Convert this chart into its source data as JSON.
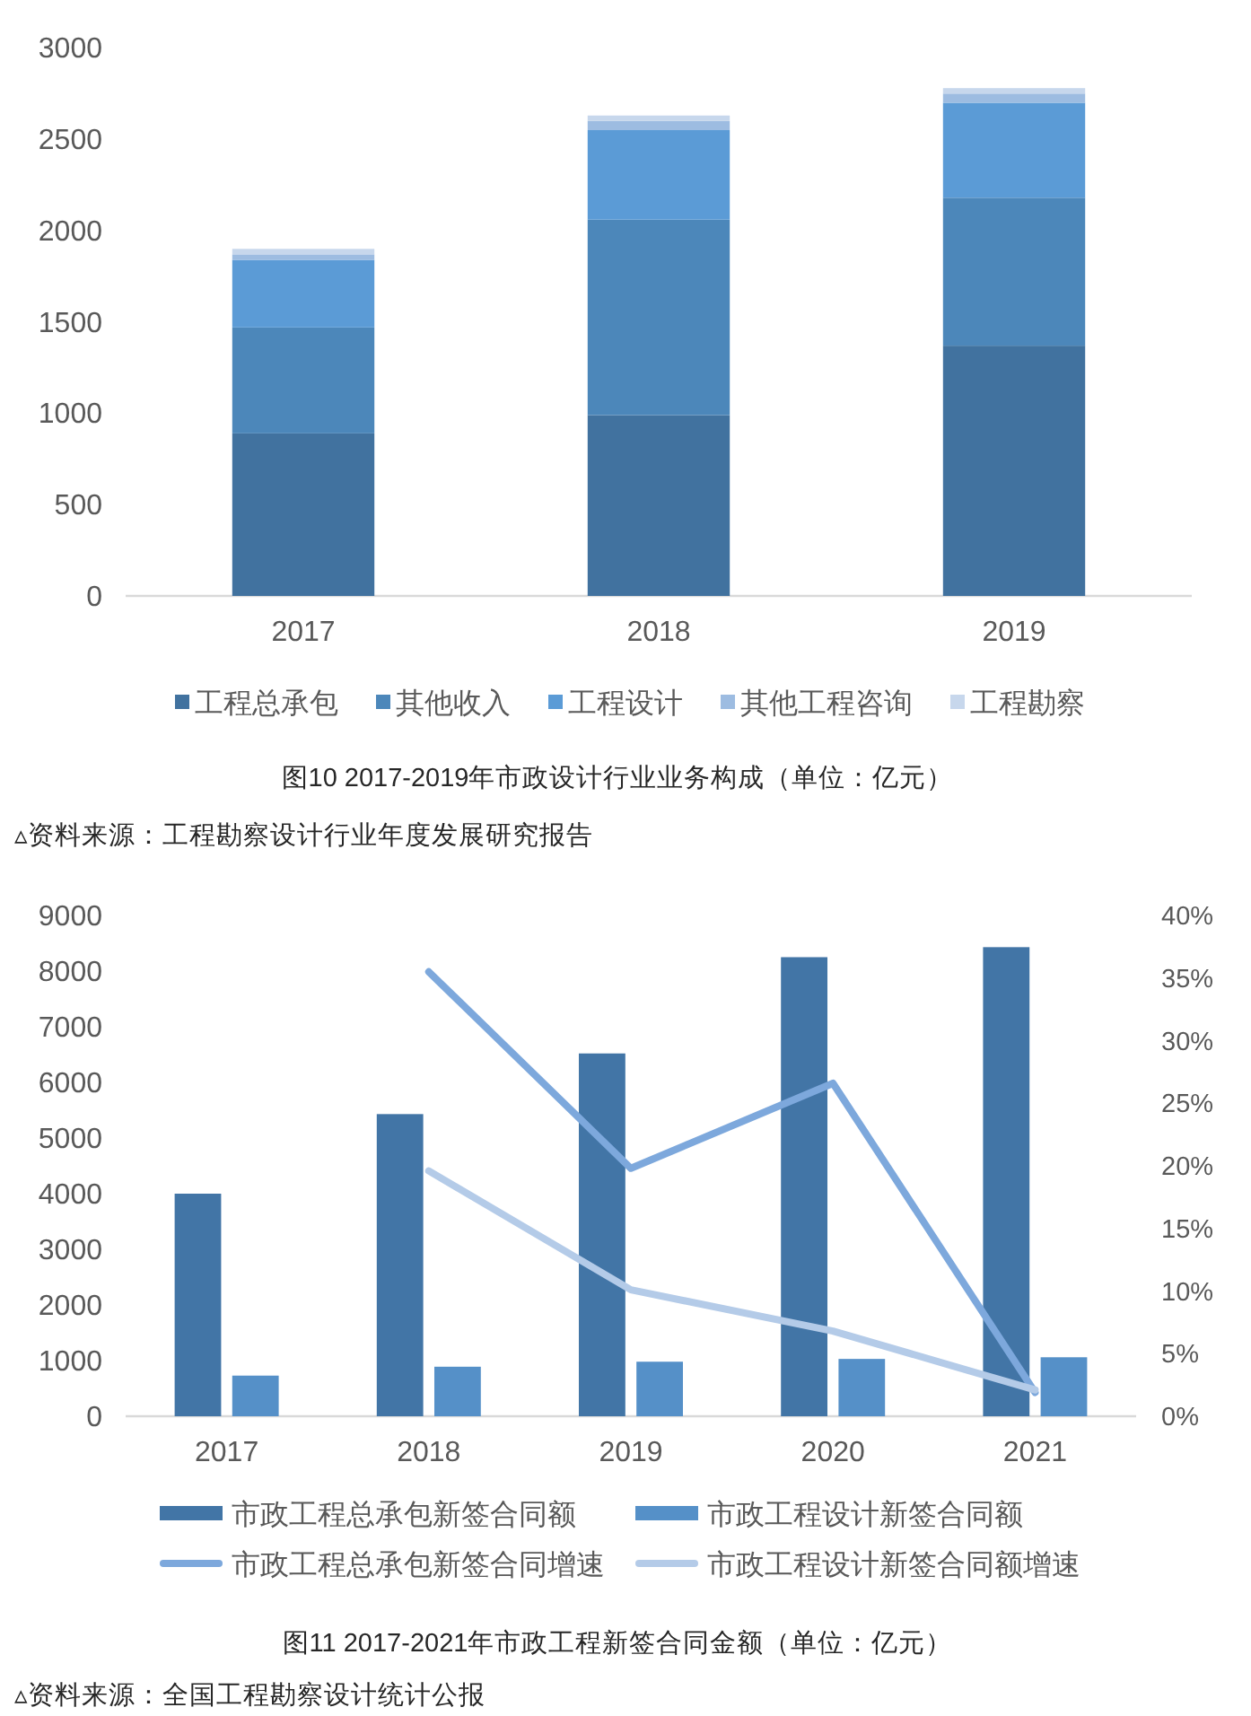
{
  "chart_data": [
    {
      "type": "bar",
      "stacked": true,
      "title": "图10 2017-2019年市政设计行业业务构成（单位：亿元）",
      "annotations": [
        "▵资料来源：工程勘察设计行业年度发展研究报告"
      ],
      "categories": [
        "2017",
        "2018",
        "2019"
      ],
      "series": [
        {
          "name": "工程总承包",
          "color": "#41729f",
          "values": [
            890,
            990,
            1370
          ]
        },
        {
          "name": "其他收入",
          "color": "#4c87ba",
          "values": [
            580,
            1070,
            810
          ]
        },
        {
          "name": "工程设计",
          "color": "#5b9bd6",
          "values": [
            370,
            490,
            520
          ]
        },
        {
          "name": "其他工程咨询",
          "color": "#9dbce1",
          "values": [
            30,
            50,
            50
          ]
        },
        {
          "name": "工程勘察",
          "color": "#c7d7ec",
          "values": [
            30,
            30,
            30
          ]
        }
      ],
      "ylim": [
        0,
        3000
      ],
      "yticks": [
        0,
        500,
        1000,
        1500,
        2000,
        2500,
        3000
      ],
      "legend": "bottom"
    },
    {
      "type": "bar",
      "title": "图11 2017-2021年市政工程新签合同金额（单位：亿元）",
      "annotations": [
        "▵资料来源：全国工程勘察设计统计公报"
      ],
      "categories": [
        "2017",
        "2018",
        "2019",
        "2020",
        "2021"
      ],
      "series": [
        {
          "name": "市政工程总承包新签合同额",
          "color": "#4275a6",
          "values": [
            4000,
            5430,
            6520,
            8250,
            8430
          ]
        },
        {
          "name": "市政工程设计新签合同额",
          "color": "#5590c8",
          "values": [
            730,
            890,
            980,
            1030,
            1060
          ]
        },
        {
          "name": "市政工程总承包新签合同增速",
          "type": "line",
          "axis": "y2",
          "color": "#7da8dc",
          "values": [
            null,
            35.5,
            19.8,
            26.6,
            1.9
          ]
        },
        {
          "name": "市政工程设计新签合同额增速",
          "type": "line",
          "axis": "y2",
          "color": "#b4cbe8",
          "values": [
            null,
            19.6,
            10.1,
            6.8,
            2.1
          ]
        }
      ],
      "ylim": [
        0,
        9000
      ],
      "yticks": [
        0,
        1000,
        2000,
        3000,
        4000,
        5000,
        6000,
        7000,
        8000,
        9000
      ],
      "y2lim": [
        0,
        40
      ],
      "y2ticks": [
        {
          "value": 0,
          "label": "0%"
        },
        {
          "value": 5,
          "label": "5%"
        },
        {
          "value": 10,
          "label": "10%"
        },
        {
          "value": 15,
          "label": "15%"
        },
        {
          "value": 20,
          "label": "20%"
        },
        {
          "value": 25,
          "label": "25%"
        },
        {
          "value": 30,
          "label": "30%"
        },
        {
          "value": 35,
          "label": "35%"
        },
        {
          "value": 40,
          "label": "40%"
        }
      ],
      "legend": "bottom"
    }
  ]
}
